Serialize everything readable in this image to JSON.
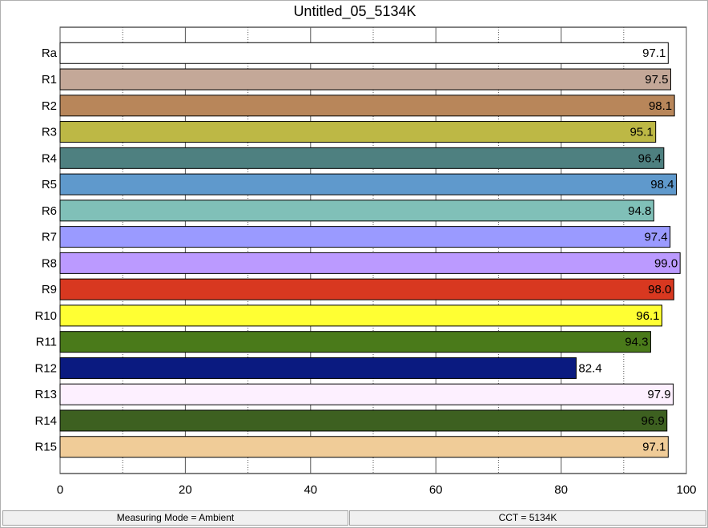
{
  "chart_data": {
    "type": "barh",
    "title": "Untitled_05_5134K",
    "categories": [
      "Ra",
      "R1",
      "R2",
      "R3",
      "R4",
      "R5",
      "R6",
      "R7",
      "R8",
      "R9",
      "R10",
      "R11",
      "R12",
      "R13",
      "R14",
      "R15"
    ],
    "values": [
      97.1,
      97.5,
      98.1,
      95.1,
      96.4,
      98.4,
      94.8,
      97.4,
      99.0,
      98.0,
      96.1,
      94.3,
      82.4,
      97.9,
      96.9,
      97.1
    ],
    "value_labels": [
      "97.1",
      "97.5",
      "98.1",
      "95.1",
      "96.4",
      "98.4",
      "94.8",
      "97.4",
      "99.0",
      "98.0",
      "96.1",
      "94.3",
      "82.4",
      "97.9",
      "96.9",
      "97.1"
    ],
    "colors": [
      "#ffffff",
      "#c4a898",
      "#b8865a",
      "#bdb845",
      "#4e8080",
      "#5f99cc",
      "#80c0b8",
      "#9a9aff",
      "#bb9aff",
      "#d83820",
      "#ffff33",
      "#4a7a1a",
      "#0a1a80",
      "#fdf0ff",
      "#3d6020",
      "#f0cc98"
    ],
    "xlim": [
      0,
      100
    ],
    "xticks": [
      0,
      20,
      40,
      60,
      80,
      100
    ],
    "minor_xticks": [
      10,
      30,
      50,
      70,
      90
    ],
    "grid": true
  },
  "status_bar": [
    "Measuring Mode = Ambient",
    "CCT = 5134K"
  ]
}
